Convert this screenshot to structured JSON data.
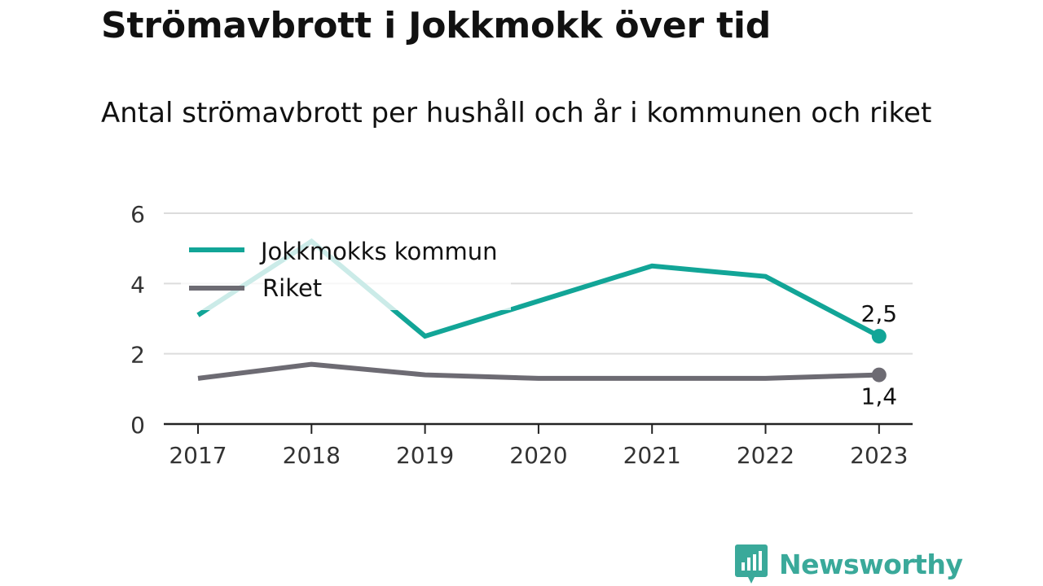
{
  "title": "Strömavbrott i Jokkmokk över tid",
  "subtitle": "Antal strömavbrott per hushåll och år i kommunen och riket",
  "brand": {
    "name": "Newsworthy",
    "logo_icon": "bar-chart-speech-bubble-icon",
    "color": "#3aa99a"
  },
  "colors": {
    "jokkmokk": "#12a597",
    "riket": "#6d6b73",
    "grid": "#dcdcdc",
    "axis": "#222222"
  },
  "chart_data": {
    "type": "line",
    "x": [
      "2017",
      "2018",
      "2019",
      "2020",
      "2021",
      "2022",
      "2023"
    ],
    "y_ticks": [
      "0",
      "2",
      "4",
      "6"
    ],
    "ylim": [
      0,
      6
    ],
    "grid": true,
    "legend_position": "top-left",
    "series": [
      {
        "name": "Jokkmokks kommun",
        "values": [
          3.1,
          5.2,
          2.5,
          3.5,
          4.5,
          4.2,
          2.5
        ],
        "end_label": "2,5",
        "color": "#12a597"
      },
      {
        "name": "Riket",
        "values": [
          1.3,
          1.7,
          1.4,
          1.3,
          1.3,
          1.3,
          1.4
        ],
        "end_label": "1,4",
        "color": "#6d6b73"
      }
    ]
  }
}
